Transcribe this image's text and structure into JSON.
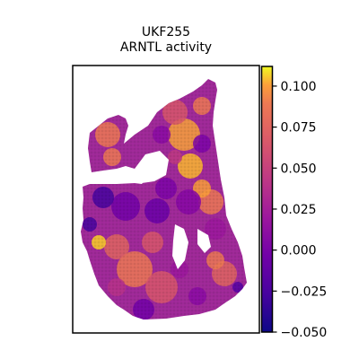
{
  "chart_data": {
    "type": "heatmap",
    "title_lines": [
      "UKF255",
      "ARNTL activity"
    ],
    "colorbar": {
      "colormap": "plasma",
      "range": [
        -0.05,
        0.112
      ],
      "ticks": [
        {
          "value": 0.1,
          "label": "0.100"
        },
        {
          "value": 0.075,
          "label": "0.075"
        },
        {
          "value": 0.05,
          "label": "0.050"
        },
        {
          "value": 0.025,
          "label": "0.025"
        },
        {
          "value": 0.0,
          "label": "0.000"
        },
        {
          "value": -0.025,
          "label": "−0.025"
        },
        {
          "value": -0.05,
          "label": "−0.050"
        }
      ]
    },
    "xticks": [],
    "yticks": [],
    "grid": false
  }
}
